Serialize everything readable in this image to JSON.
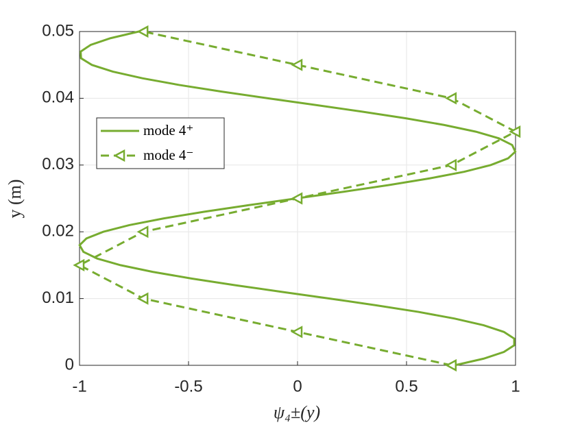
{
  "chart_data": {
    "type": "line",
    "xlabel": "ψ₄±(y)",
    "ylabel": "y (m)",
    "xlim": [
      -1,
      1
    ],
    "ylim": [
      0,
      0.05
    ],
    "xticks": [
      -1,
      -0.5,
      0,
      0.5,
      1
    ],
    "yticks": [
      0,
      0.01,
      0.02,
      0.03,
      0.04,
      0.05
    ],
    "grid": true,
    "legend": "northwest",
    "series": [
      {
        "name": "mode 4⁺",
        "color": "#77ac30",
        "style": "solid",
        "marker": "none",
        "y": [
          0,
          0.001,
          0.002,
          0.003,
          0.004,
          0.005,
          0.006,
          0.007,
          0.008,
          0.009,
          0.01,
          0.011,
          0.012,
          0.013,
          0.014,
          0.015,
          0.016,
          0.017,
          0.018,
          0.019,
          0.02,
          0.021,
          0.022,
          0.023,
          0.024,
          0.025,
          0.026,
          0.027,
          0.028,
          0.029,
          0.03,
          0.031,
          0.032,
          0.033,
          0.034,
          0.035,
          0.036,
          0.037,
          0.038,
          0.039,
          0.04,
          0.041,
          0.042,
          0.043,
          0.044,
          0.045,
          0.046,
          0.047,
          0.048,
          0.049,
          0.05
        ],
        "x": [
          0.7206,
          0.854,
          0.9466,
          0.994,
          0.994,
          0.9466,
          0.854,
          0.7206,
          0.5546,
          0.3591,
          0.1474,
          -0.0712,
          -0.2859,
          -0.4866,
          -0.6647,
          -0.8119,
          -0.9194,
          -0.9821,
          -0.9995,
          -0.9685,
          -0.8912,
          -0.7715,
          -0.6151,
          -0.4293,
          -0.2226,
          -0.0054,
          0.2117,
          0.4189,
          0.6061,
          0.7651,
          0.8863,
          0.9657,
          0.999,
          0.9847,
          0.9233,
          0.8179,
          0.6733,
          0.497,
          0.296,
          0.0819,
          -0.1365,
          -0.3486,
          -0.5432,
          -0.7114,
          -0.8478,
          -0.9434,
          -0.993,
          -0.9948,
          -0.9487,
          -0.858,
          -0.728
        ]
      },
      {
        "name": "mode 4⁻",
        "color": "#77ac30",
        "style": "dashed",
        "marker": "triangle-left",
        "y": [
          0,
          0.005,
          0.01,
          0.015,
          0.02,
          0.025,
          0.03,
          0.035,
          0.04,
          0.045,
          0.05
        ],
        "x": [
          0.707,
          0,
          -0.707,
          -1,
          -0.707,
          0,
          0.707,
          1,
          0.707,
          0,
          -0.707
        ]
      }
    ]
  }
}
